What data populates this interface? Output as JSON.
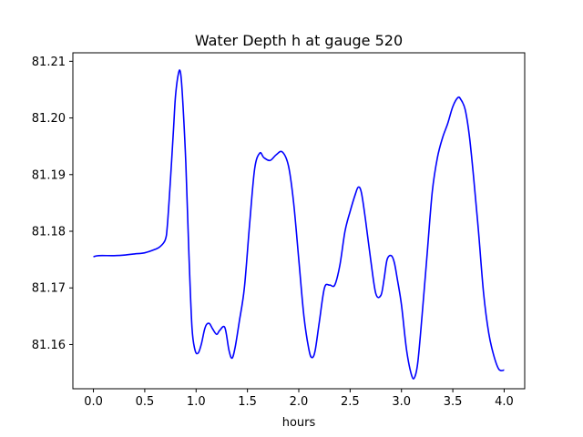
{
  "chart_data": {
    "type": "line",
    "title": "Water Depth h at gauge 520",
    "xlabel": "hours",
    "ylabel": "",
    "xlim": [
      -0.2,
      4.2
    ],
    "ylim": [
      81.1522,
      81.2115
    ],
    "xticks": [
      0.0,
      0.5,
      1.0,
      1.5,
      2.0,
      2.5,
      3.0,
      3.5,
      4.0
    ],
    "xtick_labels": [
      "0.0",
      "0.5",
      "1.0",
      "1.5",
      "2.0",
      "2.5",
      "3.0",
      "3.5",
      "4.0"
    ],
    "yticks": [
      81.16,
      81.17,
      81.18,
      81.19,
      81.2,
      81.21
    ],
    "ytick_labels": [
      "81.16",
      "81.17",
      "81.18",
      "81.19",
      "81.20",
      "81.21"
    ],
    "grid": false,
    "series": [
      {
        "color": "#0000ff",
        "x": [
          0.0,
          0.05,
          0.2,
          0.3,
          0.4,
          0.5,
          0.6,
          0.65,
          0.7,
          0.72,
          0.75,
          0.78,
          0.8,
          0.83,
          0.85,
          0.87,
          0.9,
          0.93,
          0.96,
          0.99,
          1.02,
          1.05,
          1.08,
          1.1,
          1.13,
          1.16,
          1.2,
          1.23,
          1.28,
          1.32,
          1.35,
          1.38,
          1.42,
          1.47,
          1.52,
          1.57,
          1.62,
          1.66,
          1.72,
          1.78,
          1.84,
          1.9,
          1.95,
          2.0,
          2.05,
          2.1,
          2.13,
          2.16,
          2.2,
          2.25,
          2.3,
          2.35,
          2.4,
          2.45,
          2.5,
          2.55,
          2.58,
          2.61,
          2.65,
          2.7,
          2.75,
          2.8,
          2.83,
          2.86,
          2.9,
          2.93,
          2.96,
          3.0,
          3.05,
          3.1,
          3.13,
          3.16,
          3.2,
          3.25,
          3.3,
          3.35,
          3.4,
          3.45,
          3.5,
          3.55,
          3.58,
          3.62,
          3.66,
          3.7,
          3.75,
          3.8,
          3.85,
          3.9,
          3.95,
          4.0
        ],
        "y": [
          81.1755,
          81.1757,
          81.1757,
          81.1758,
          81.176,
          81.1762,
          81.1768,
          81.1773,
          81.1785,
          81.181,
          81.189,
          81.198,
          81.204,
          81.208,
          81.2078,
          81.203,
          81.192,
          81.176,
          81.163,
          81.159,
          81.1585,
          81.16,
          81.1625,
          81.1635,
          81.1637,
          81.1628,
          81.1618,
          81.1625,
          81.163,
          81.159,
          81.1576,
          81.1595,
          81.164,
          81.17,
          81.181,
          81.191,
          81.1938,
          81.193,
          81.1925,
          81.1935,
          81.194,
          81.1915,
          81.185,
          81.175,
          81.165,
          81.159,
          81.1577,
          81.159,
          81.164,
          81.17,
          81.1705,
          81.1705,
          81.174,
          81.18,
          81.1835,
          81.1865,
          81.1878,
          81.1868,
          81.182,
          81.175,
          81.169,
          81.1687,
          81.1715,
          81.175,
          81.1757,
          81.1745,
          81.1715,
          81.167,
          81.159,
          81.1545,
          81.1543,
          81.157,
          81.165,
          81.176,
          81.187,
          81.193,
          81.1965,
          81.199,
          81.202,
          81.2036,
          81.2032,
          81.2015,
          81.197,
          81.19,
          81.18,
          81.169,
          81.162,
          81.158,
          81.1556,
          81.1555
        ]
      }
    ]
  }
}
